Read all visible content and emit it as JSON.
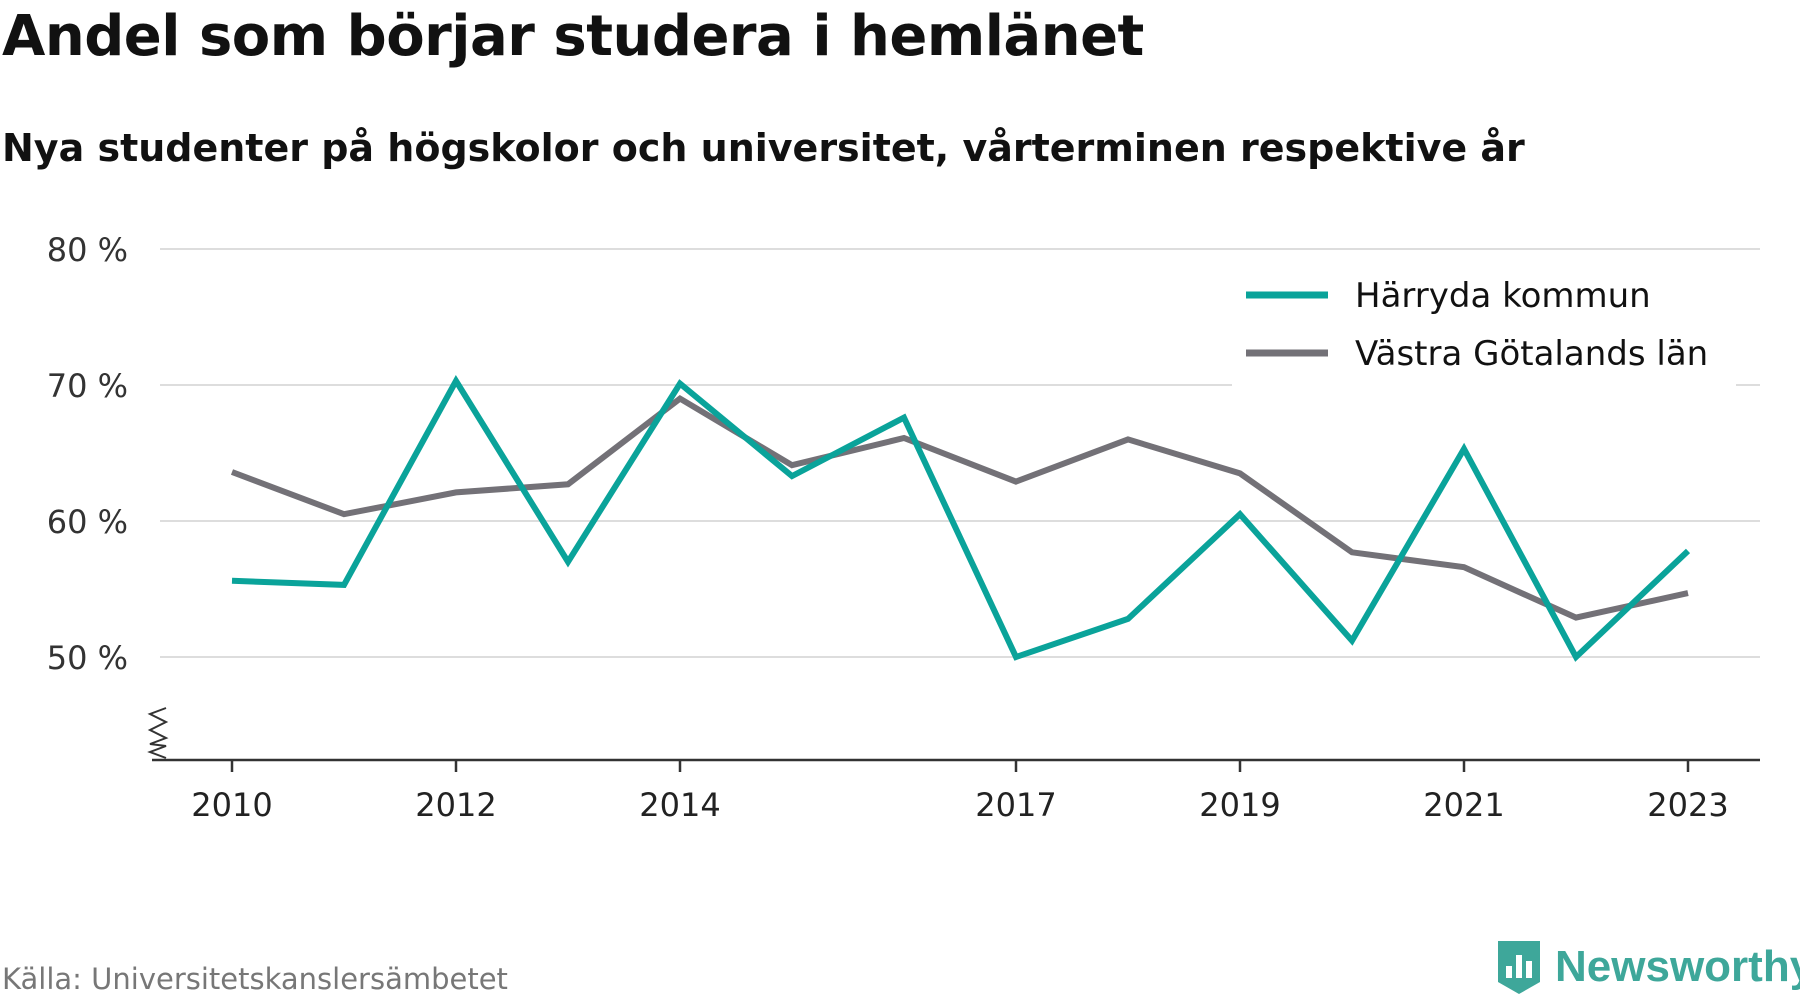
{
  "title": "Andel som börjar studera i hemlänet",
  "subtitle": "Nya studenter på högskolor och universitet, vårterminen respektive år",
  "source": "Källa: Universitetskanslersämbetet",
  "brand": "Newsworthy",
  "colors": {
    "harryda": "#0aa39a",
    "vgl": "#737177",
    "grid": "#dddddd",
    "axis": "#333333",
    "brand": "#3ea79a"
  },
  "chart_data": {
    "type": "line",
    "x": [
      2010,
      2011,
      2012,
      2013,
      2014,
      2015,
      2016,
      2017,
      2018,
      2019,
      2020,
      2021,
      2022,
      2023
    ],
    "x_tick_labels": [
      "2010",
      "2012",
      "2014",
      "2017",
      "2019",
      "2021",
      "2023"
    ],
    "y_tick_labels": [
      "80 %",
      "70 %",
      "60 %",
      "50 %"
    ],
    "y_ticks": [
      80,
      70,
      60,
      50
    ],
    "ylim": [
      42.5,
      80
    ],
    "axis_break": true,
    "grid": true,
    "legend_position": "top-right",
    "series": [
      {
        "name": "Härryda kommun",
        "color": "#0aa39a",
        "values": [
          55.6,
          55.3,
          70.3,
          57.0,
          70.1,
          63.3,
          67.6,
          50.0,
          52.8,
          60.5,
          51.2,
          65.3,
          50.0,
          57.8
        ]
      },
      {
        "name": "Västra Götalands län",
        "color": "#737177",
        "values": [
          63.6,
          60.5,
          62.1,
          62.7,
          69.0,
          64.1,
          66.1,
          62.9,
          66.0,
          63.5,
          57.7,
          56.6,
          52.9,
          54.7
        ]
      }
    ]
  }
}
